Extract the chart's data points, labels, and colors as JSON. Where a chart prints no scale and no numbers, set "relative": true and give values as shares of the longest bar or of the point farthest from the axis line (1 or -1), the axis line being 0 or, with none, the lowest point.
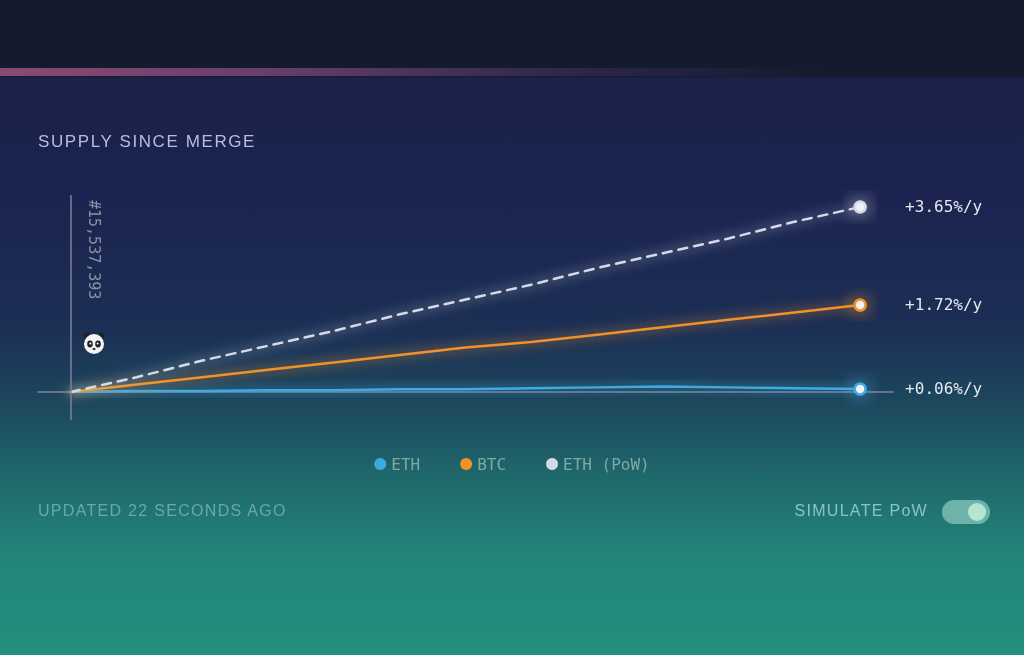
{
  "chart_data": {
    "type": "line",
    "title": "SUPPLY SINCE MERGE",
    "relative": true,
    "categories": [
      null,
      null,
      null,
      null,
      null,
      null,
      null,
      null,
      null,
      null,
      null,
      null,
      null
    ],
    "series": [
      {
        "name": "ETH",
        "color": "#3fa9df",
        "values": [
          0,
          0.005,
          0.005,
          0.01,
          0.01,
          0.015,
          0.015,
          0.02,
          0.025,
          0.03,
          0.025,
          0.02,
          0.016
        ]
      },
      {
        "name": "BTC",
        "color": "#f0922a",
        "values": [
          0,
          0.04,
          0.08,
          0.12,
          0.16,
          0.2,
          0.24,
          0.27,
          0.31,
          0.35,
          0.39,
          0.43,
          0.47
        ]
      },
      {
        "name": "ETH (PoW)",
        "color": "#d6dae6",
        "line_style": "dashed",
        "values": [
          0,
          0.08,
          0.17,
          0.25,
          0.33,
          0.42,
          0.5,
          0.58,
          0.67,
          0.75,
          0.83,
          0.92,
          1
        ]
      }
    ],
    "annotations": [
      "#15,537,393",
      "+0.06%/y",
      "+1.72%/y",
      "+3.65%/y",
      "UPDATED 22 SECONDS AGO",
      "SIMULATE PoW"
    ],
    "legend": "bottom",
    "grid": false
  }
}
